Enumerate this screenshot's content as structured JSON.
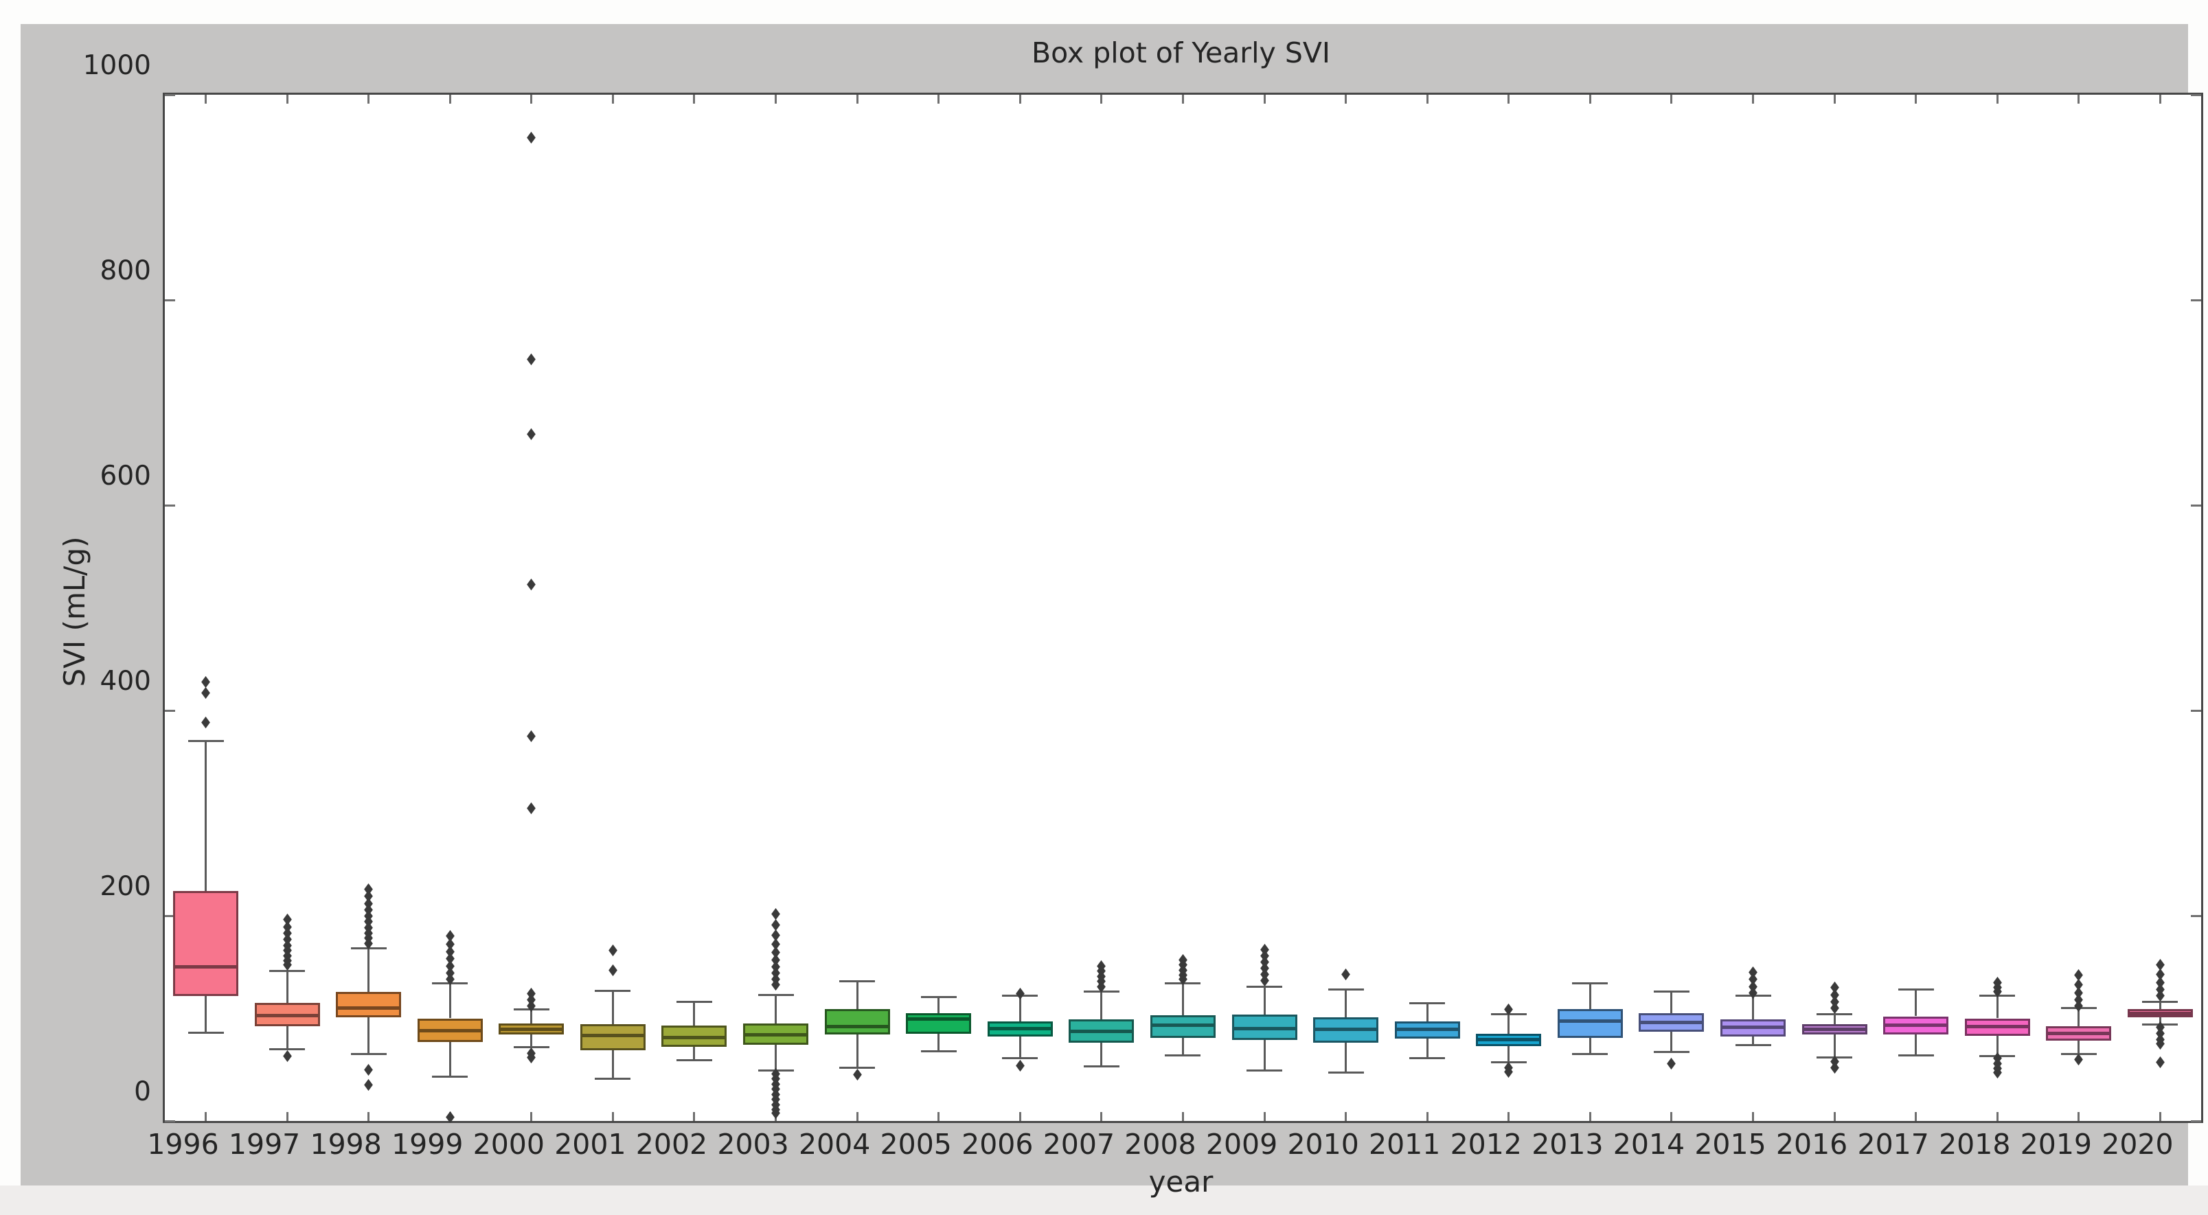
{
  "figure": {
    "title": "Box plot of Yearly SVI",
    "xlabel": "year",
    "ylabel": "SVI (mL/g)",
    "figure_bg": "#c5c4c3",
    "plot_bg": "#ffffff",
    "frame_color": "#474747",
    "whisker_color": "#5a5a5a",
    "flier_color": "#3a3a3a"
  },
  "chart_data": {
    "type": "box",
    "title": "Box plot of Yearly SVI",
    "xlabel": "year",
    "ylabel": "SVI (mL/g)",
    "ylim": [
      0,
      1000
    ],
    "y_ticks": [
      0,
      200,
      400,
      600,
      800,
      1000
    ],
    "grid": false,
    "legend": "none",
    "categories": [
      "1996",
      "1997",
      "1998",
      "1999",
      "2000",
      "2001",
      "2002",
      "2003",
      "2004",
      "2005",
      "2006",
      "2007",
      "2008",
      "2009",
      "2010",
      "2011",
      "2012",
      "2013",
      "2014",
      "2015",
      "2016",
      "2017",
      "2018",
      "2019",
      "2020"
    ],
    "series": [
      {
        "year": "1996",
        "color": "#f7758d",
        "whislo": 86,
        "q1": 122,
        "med": 150,
        "q3": 224,
        "whishi": 370,
        "fliers_high": [
          428,
          417,
          388
        ],
        "fliers_low": []
      },
      {
        "year": "1997",
        "color": "#f5836f",
        "whislo": 70,
        "q1": 92,
        "med": 103,
        "q3": 115,
        "whishi": 146,
        "fliers_high": [
          196,
          189,
          183,
          177,
          171,
          166,
          161,
          156,
          152
        ],
        "fliers_low": [
          63
        ]
      },
      {
        "year": "1998",
        "color": "#f08e41",
        "whislo": 65,
        "q1": 101,
        "med": 110,
        "q3": 126,
        "whishi": 168,
        "fliers_high": [
          226,
          219,
          212,
          206,
          200,
          194,
          188,
          183,
          178,
          173
        ],
        "fliers_low": [
          50,
          35
        ]
      },
      {
        "year": "1999",
        "color": "#dd9434",
        "whislo": 43,
        "q1": 77,
        "med": 88,
        "q3": 100,
        "whishi": 134,
        "fliers_high": [
          180,
          172,
          165,
          158,
          151,
          144,
          138
        ],
        "fliers_low": [
          4
        ]
      },
      {
        "year": "2000",
        "color": "#bd9a32",
        "whislo": 72,
        "q1": 84,
        "med": 89,
        "q3": 95,
        "whishi": 109,
        "fliers_high": [
          958,
          742,
          669,
          523,
          375,
          305,
          124,
          118,
          112
        ],
        "fliers_low": [
          66,
          62
        ]
      },
      {
        "year": "2001",
        "color": "#b0a23c",
        "whislo": 41,
        "q1": 69,
        "med": 83,
        "q3": 94,
        "whishi": 127,
        "fliers_high": [
          166,
          147
        ],
        "fliers_low": []
      },
      {
        "year": "2002",
        "color": "#9caa39",
        "whislo": 59,
        "q1": 72,
        "med": 81,
        "q3": 93,
        "whishi": 116,
        "fliers_high": [],
        "fliers_low": []
      },
      {
        "year": "2003",
        "color": "#7cad36",
        "whislo": 49,
        "q1": 74,
        "med": 84,
        "q3": 95,
        "whishi": 123,
        "fliers_high": [
          202,
          191,
          181,
          172,
          164,
          157,
          150,
          144,
          138,
          133
        ],
        "fliers_low": [
          46,
          41,
          36,
          31,
          26,
          21,
          16,
          11,
          8
        ]
      },
      {
        "year": "2004",
        "color": "#4caf3f",
        "whislo": 52,
        "q1": 84,
        "med": 92,
        "q3": 109,
        "whishi": 136,
        "fliers_high": [],
        "fliers_low": [
          45
        ]
      },
      {
        "year": "2005",
        "color": "#14b159",
        "whislo": 68,
        "q1": 85,
        "med": 99,
        "q3": 105,
        "whishi": 121,
        "fliers_high": [],
        "fliers_low": []
      },
      {
        "year": "2006",
        "color": "#0eb385",
        "whislo": 61,
        "q1": 82,
        "med": 90,
        "q3": 97,
        "whishi": 122,
        "fliers_high": [
          124
        ],
        "fliers_low": [
          54
        ]
      },
      {
        "year": "2007",
        "color": "#2ab19d",
        "whislo": 53,
        "q1": 76,
        "med": 87,
        "q3": 99,
        "whishi": 126,
        "fliers_high": [
          151,
          146,
          141,
          136,
          131
        ],
        "fliers_low": []
      },
      {
        "year": "2008",
        "color": "#30b0ab",
        "whislo": 64,
        "q1": 81,
        "med": 93,
        "q3": 103,
        "whishi": 134,
        "fliers_high": [
          157,
          152,
          147,
          142,
          138
        ],
        "fliers_low": []
      },
      {
        "year": "2009",
        "color": "#33afbd",
        "whislo": 49,
        "q1": 79,
        "med": 90,
        "q3": 104,
        "whishi": 131,
        "fliers_high": [
          167,
          161,
          155,
          149,
          143,
          137
        ],
        "fliers_low": []
      },
      {
        "year": "2010",
        "color": "#36adc9",
        "whislo": 47,
        "q1": 76,
        "med": 89,
        "q3": 101,
        "whishi": 128,
        "fliers_high": [
          143
        ],
        "fliers_low": []
      },
      {
        "year": "2011",
        "color": "#3aa6d9",
        "whislo": 61,
        "q1": 80,
        "med": 89,
        "q3": 97,
        "whishi": 115,
        "fliers_high": [],
        "fliers_low": []
      },
      {
        "year": "2012",
        "color": "#17a5cf",
        "whislo": 57,
        "q1": 73,
        "med": 79,
        "q3": 85,
        "whishi": 104,
        "fliers_high": [
          109
        ],
        "fliers_low": [
          52,
          48
        ]
      },
      {
        "year": "2013",
        "color": "#60a7ee",
        "whislo": 65,
        "q1": 81,
        "med": 97,
        "q3": 109,
        "whishi": 134,
        "fliers_high": [],
        "fliers_low": []
      },
      {
        "year": "2014",
        "color": "#8f9ff3",
        "whislo": 67,
        "q1": 87,
        "med": 96,
        "q3": 105,
        "whishi": 126,
        "fliers_high": [],
        "fliers_low": [
          56
        ]
      },
      {
        "year": "2015",
        "color": "#ab90f0",
        "whislo": 74,
        "q1": 82,
        "med": 91,
        "q3": 99,
        "whishi": 122,
        "fliers_high": [
          145,
          138,
          131,
          125
        ],
        "fliers_low": []
      },
      {
        "year": "2016",
        "color": "#bb7dd0",
        "whislo": 62,
        "q1": 84,
        "med": 89,
        "q3": 94,
        "whishi": 104,
        "fliers_high": [
          130,
          123,
          116,
          110
        ],
        "fliers_low": [
          58,
          52
        ]
      },
      {
        "year": "2017",
        "color": "#f266d8",
        "whislo": 64,
        "q1": 84,
        "med": 93,
        "q3": 102,
        "whishi": 128,
        "fliers_high": [],
        "fliers_low": []
      },
      {
        "year": "2018",
        "color": "#f564c0",
        "whislo": 63,
        "q1": 83,
        "med": 92,
        "q3": 100,
        "whishi": 122,
        "fliers_high": [
          135,
          130,
          126
        ],
        "fliers_low": [
          61,
          56,
          51,
          47
        ]
      },
      {
        "year": "2019",
        "color": "#ee6fb0",
        "whislo": 65,
        "q1": 78,
        "med": 85,
        "q3": 92,
        "whishi": 110,
        "fliers_high": [
          142,
          133,
          125,
          118,
          112
        ],
        "fliers_low": [
          60
        ]
      },
      {
        "year": "2020",
        "color": "#ef6f9a",
        "whislo": 94,
        "q1": 101,
        "med": 105,
        "q3": 109,
        "whishi": 116,
        "fliers_high": [
          152,
          143,
          135,
          128,
          122
        ],
        "fliers_low": [
          91,
          85,
          79,
          75,
          57
        ]
      }
    ]
  }
}
